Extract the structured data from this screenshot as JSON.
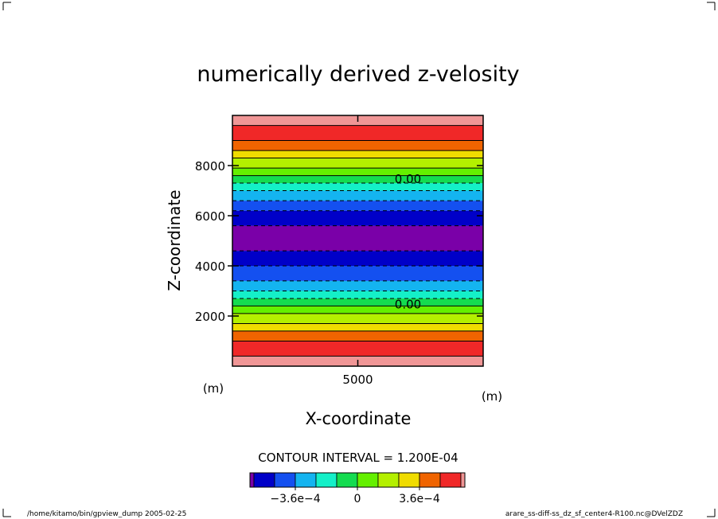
{
  "chart_data": {
    "type": "heatmap",
    "title": "numerically derived z-velosity",
    "xlabel": "X-coordinate",
    "ylabel": "Z-coordinate",
    "x_unit": "(m)",
    "y_unit": "(m)",
    "xlim": [
      0,
      10000
    ],
    "ylim": [
      0,
      10000
    ],
    "x_ticks": [
      5000
    ],
    "x_tick_labels": [
      "5000"
    ],
    "y_ticks": [
      2000,
      4000,
      6000,
      8000
    ],
    "y_tick_labels": [
      "2000",
      "4000",
      "6000",
      "8000"
    ],
    "contour_interval_text": "CONTOUR INTERVAL = 1.200E-04",
    "contour_labels": [
      {
        "text": "0.00",
        "x": 7000,
        "z": 7500
      },
      {
        "text": "0.00",
        "x": 7000,
        "z": 2500
      }
    ],
    "colorbar": {
      "colors": [
        "#7a00a8",
        "#0000c8",
        "#1450f0",
        "#14b4f0",
        "#14f0c8",
        "#14dc50",
        "#64f000",
        "#b4f000",
        "#f0dc00",
        "#f06400",
        "#f02828",
        "#f09696"
      ],
      "labels": [
        {
          "text": "−3.6e−4",
          "level": -0.00036
        },
        {
          "text": "0",
          "level": 0
        },
        {
          "text": "3.6e−4",
          "level": 0.00036
        }
      ]
    },
    "bands": [
      {
        "z0": 0,
        "z1": 400,
        "color": "#f09696"
      },
      {
        "z0": 400,
        "z1": 1000,
        "color": "#f02828"
      },
      {
        "z0": 1000,
        "z1": 1400,
        "color": "#f06400"
      },
      {
        "z0": 1400,
        "z1": 1700,
        "color": "#f0dc00"
      },
      {
        "z0": 1700,
        "z1": 2100,
        "color": "#b4f000"
      },
      {
        "z0": 2100,
        "z1": 2400,
        "color": "#64f000"
      },
      {
        "z0": 2400,
        "z1": 2700,
        "color": "#14dc50"
      },
      {
        "z0": 2700,
        "z1": 3000,
        "color": "#14f0c8"
      },
      {
        "z0": 3000,
        "z1": 3400,
        "color": "#14b4f0"
      },
      {
        "z0": 3400,
        "z1": 4000,
        "color": "#1450f0"
      },
      {
        "z0": 4000,
        "z1": 4600,
        "color": "#0000c8"
      },
      {
        "z0": 4600,
        "z1": 5600,
        "color": "#7a00a8"
      },
      {
        "z0": 5600,
        "z1": 6200,
        "color": "#0000c8"
      },
      {
        "z0": 6200,
        "z1": 6600,
        "color": "#1450f0"
      },
      {
        "z0": 6600,
        "z1": 7000,
        "color": "#14b4f0"
      },
      {
        "z0": 7000,
        "z1": 7300,
        "color": "#14f0c8"
      },
      {
        "z0": 7300,
        "z1": 7600,
        "color": "#14dc50"
      },
      {
        "z0": 7600,
        "z1": 7900,
        "color": "#64f000"
      },
      {
        "z0": 7900,
        "z1": 8300,
        "color": "#b4f000"
      },
      {
        "z0": 8300,
        "z1": 8600,
        "color": "#f0dc00"
      },
      {
        "z0": 8600,
        "z1": 9000,
        "color": "#f06400"
      },
      {
        "z0": 9000,
        "z1": 9600,
        "color": "#f02828"
      },
      {
        "z0": 9600,
        "z1": 10000,
        "color": "#f09696"
      }
    ],
    "contours": [
      {
        "z": 400,
        "dashed": false
      },
      {
        "z": 1000,
        "dashed": false
      },
      {
        "z": 1400,
        "dashed": false
      },
      {
        "z": 1700,
        "dashed": false
      },
      {
        "z": 2100,
        "dashed": false
      },
      {
        "z": 2400,
        "dashed": false
      },
      {
        "z": 2700,
        "dashed": true
      },
      {
        "z": 3000,
        "dashed": true
      },
      {
        "z": 3400,
        "dashed": true
      },
      {
        "z": 4000,
        "dashed": true
      },
      {
        "z": 4600,
        "dashed": true
      },
      {
        "z": 5600,
        "dashed": true
      },
      {
        "z": 6200,
        "dashed": true
      },
      {
        "z": 6600,
        "dashed": true
      },
      {
        "z": 7000,
        "dashed": true
      },
      {
        "z": 7300,
        "dashed": true
      },
      {
        "z": 7600,
        "dashed": false
      },
      {
        "z": 7900,
        "dashed": false
      },
      {
        "z": 8300,
        "dashed": false
      },
      {
        "z": 8600,
        "dashed": false
      },
      {
        "z": 9000,
        "dashed": false
      },
      {
        "z": 9600,
        "dashed": false
      }
    ]
  },
  "footer": {
    "left": "/home/kitamo/bin/gpview_dump  2005-02-25",
    "right": "arare_ss-diff-ss_dz_sf_center4-R100.nc@DVelZDZ"
  }
}
